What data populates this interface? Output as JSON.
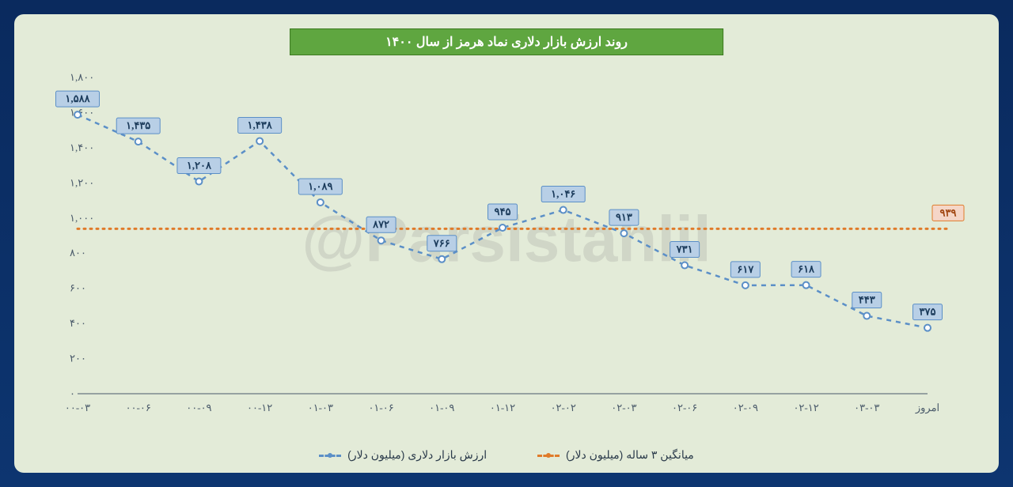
{
  "title": "روند ارزش بازار دلاری نماد هرمز از سال ۱۴۰۰",
  "watermark": "@Parsistahlil",
  "chart": {
    "type": "line",
    "background_color": "#e3ebd8",
    "outer_background": "#0a2a5e",
    "title_bg": "#5fa640",
    "title_fg": "#ffffff",
    "ylim": [
      0,
      1800
    ],
    "ytick_step": 200,
    "yticks": [
      "۰",
      "۲۰۰",
      "۴۰۰",
      "۶۰۰",
      "۸۰۰",
      "۱,۰۰۰",
      "۱,۲۰۰",
      "۱,۴۰۰",
      "۱,۶۰۰",
      "۱,۸۰۰"
    ],
    "xticks": [
      "۰۰-۰۳",
      "۰۰-۰۶",
      "۰۰-۰۹",
      "۰۰-۱۲",
      "۰۱-۰۳",
      "۰۱-۰۶",
      "۰۱-۰۹",
      "۰۱-۱۲",
      "۰۲-۰۲",
      "۰۲-۰۳",
      "۰۲-۰۶",
      "۰۲-۰۹",
      "۰۲-۱۲",
      "۰۳-۰۳",
      "امروز"
    ],
    "series1": {
      "name": "ارزش بازار دلاری (میلیون دلار)",
      "color": "#5b8fc7",
      "marker_color": "#5b8fc7",
      "dash": "6,6",
      "line_width": 2.5,
      "values": [
        1588,
        1435,
        1208,
        1438,
        1089,
        872,
        766,
        945,
        1046,
        913,
        731,
        617,
        618,
        443,
        375
      ],
      "labels": [
        "۱,۵۸۸",
        "۱,۴۳۵",
        "۱,۲۰۸",
        "۱,۴۳۸",
        "۱,۰۸۹",
        "۸۷۲",
        "۷۶۶",
        "۹۴۵",
        "۱,۰۴۶",
        "۹۱۳",
        "۷۳۱",
        "۶۱۷",
        "۶۱۸",
        "۴۴۳",
        "۳۷۵"
      ],
      "label_bg": "#b8cfe6",
      "label_border": "#5b8fc7",
      "label_fg": "#1a3a5a"
    },
    "series2": {
      "name": "میانگین ۳ ساله (میلیون دلار)",
      "color": "#e07b2a",
      "dash": "4,4",
      "line_width": 3,
      "value": 939,
      "end_label": "۹۳۹",
      "end_label_bg": "#f5d6c8",
      "end_label_fg": "#a04510"
    },
    "axis_color": "#4a5a6a",
    "tick_fontsize": 13,
    "label_fontsize": 13
  },
  "legend": {
    "items": [
      {
        "text": "میانگین ۳ ساله (میلیون دلار)",
        "color": "#e07b2a"
      },
      {
        "text": "ارزش بازار دلاری (میلیون دلار)",
        "color": "#5b8fc7"
      }
    ]
  }
}
